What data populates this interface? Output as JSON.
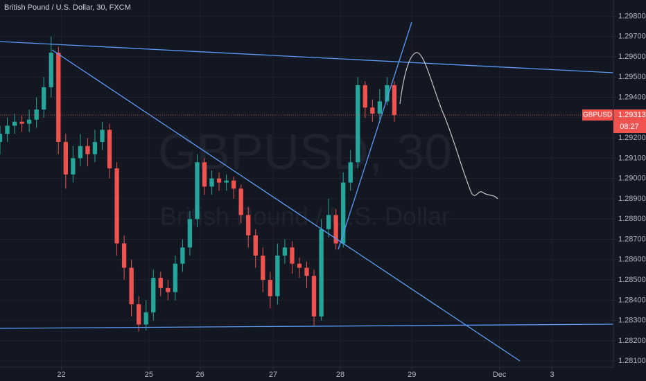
{
  "chart_data": {
    "type": "candlestick",
    "title": "British Pound / U.S. Dollar, 30, FXCM",
    "watermark": "GBPUSD, 30",
    "watermark_subtitle": "British Pound / U.S. Dollar",
    "symbol": "GBPUSD",
    "last_price": {
      "value": 1.29313,
      "label": "1.29313"
    },
    "countdown": "08:27",
    "up_color": "#26a69a",
    "down_color": "#ef5350",
    "grid": true,
    "xlim": [
      0,
      420
    ],
    "xticks": [
      {
        "value": 42,
        "label": "22"
      },
      {
        "value": 102,
        "label": "25"
      },
      {
        "value": 137,
        "label": "26"
      },
      {
        "value": 187,
        "label": "27"
      },
      {
        "value": 233,
        "label": "28"
      },
      {
        "value": 282,
        "label": "29"
      },
      {
        "value": 342,
        "label": "Dec"
      },
      {
        "value": 378,
        "label": "3"
      }
    ],
    "ylim": [
      1.2807,
      1.2988
    ],
    "yticks": [
      {
        "value": 1.281,
        "label": "1.28100"
      },
      {
        "value": 1.282,
        "label": "1.28200"
      },
      {
        "value": 1.283,
        "label": "1.28300"
      },
      {
        "value": 1.284,
        "label": "1.28400"
      },
      {
        "value": 1.285,
        "label": "1.28500"
      },
      {
        "value": 1.286,
        "label": "1.28600"
      },
      {
        "value": 1.287,
        "label": "1.28700"
      },
      {
        "value": 1.288,
        "label": "1.28800"
      },
      {
        "value": 1.289,
        "label": "1.28900"
      },
      {
        "value": 1.29,
        "label": "1.29000"
      },
      {
        "value": 1.291,
        "label": "1.29100"
      },
      {
        "value": 1.292,
        "label": "1.29200"
      },
      {
        "value": 1.293,
        "label": "1.29300"
      },
      {
        "value": 1.294,
        "label": "1.29400"
      },
      {
        "value": 1.295,
        "label": "1.29500"
      },
      {
        "value": 1.296,
        "label": "1.29600"
      },
      {
        "value": 1.297,
        "label": "1.29700"
      },
      {
        "value": 1.298,
        "label": "1.29800"
      }
    ],
    "x": [
      0,
      5,
      10,
      15,
      20,
      25,
      30,
      35,
      40,
      45,
      50,
      55,
      60,
      65,
      70,
      75,
      80,
      85,
      90,
      95,
      100,
      105,
      110,
      115,
      120,
      125,
      130,
      135,
      140,
      145,
      150,
      155,
      160,
      165,
      170,
      175,
      180,
      185,
      190,
      195,
      200,
      205,
      210,
      215,
      220,
      225,
      230,
      235,
      240,
      245,
      250,
      255,
      260,
      265,
      270
    ],
    "open": [
      1.2918,
      1.2922,
      1.2926,
      1.2928,
      1.2927,
      1.2929,
      1.2934,
      1.2945,
      1.2962,
      1.2918,
      1.2902,
      1.291,
      1.2916,
      1.2912,
      1.2918,
      1.2924,
      1.2905,
      1.2868,
      1.2856,
      1.2838,
      1.2828,
      1.2834,
      1.2851,
      1.2846,
      1.2844,
      1.2858,
      1.2866,
      1.288,
      1.2908,
      1.2896,
      1.29,
      1.2898,
      1.2899,
      1.2895,
      1.2882,
      1.2872,
      1.2862,
      1.285,
      1.2842,
      1.2862,
      1.2866,
      1.2858,
      1.2856,
      1.2852,
      1.2832,
      1.2875,
      1.2882,
      1.2868,
      1.2898,
      1.2908,
      1.2946,
      1.2935,
      1.2932,
      1.2938,
      1.2946
    ],
    "high": [
      1.2926,
      1.293,
      1.2932,
      1.2931,
      1.2934,
      1.294,
      1.295,
      1.297,
      1.2965,
      1.2922,
      1.2916,
      1.2922,
      1.292,
      1.2924,
      1.2928,
      1.2927,
      1.2908,
      1.2872,
      1.286,
      1.2842,
      1.284,
      1.2855,
      1.2854,
      1.285,
      1.2862,
      1.287,
      1.2884,
      1.2912,
      1.291,
      1.2904,
      1.2903,
      1.2902,
      1.2901,
      1.2897,
      1.2886,
      1.2875,
      1.2866,
      1.2854,
      1.2868,
      1.287,
      1.2869,
      1.2861,
      1.2859,
      1.2855,
      1.288,
      1.289,
      1.2885,
      1.2903,
      1.2914,
      1.295,
      1.2948,
      1.2939,
      1.2944,
      1.295,
      1.2948
    ],
    "low": [
      1.2912,
      1.2918,
      1.2922,
      1.2923,
      1.2923,
      1.2925,
      1.293,
      1.294,
      1.2912,
      1.2895,
      1.2898,
      1.2906,
      1.2906,
      1.2908,
      1.2914,
      1.29,
      1.2862,
      1.285,
      1.2832,
      1.28245,
      1.2825,
      1.283,
      1.2842,
      1.284,
      1.284,
      1.2854,
      1.2862,
      1.2876,
      1.2892,
      1.2892,
      1.2894,
      1.2894,
      1.289,
      1.2878,
      1.2866,
      1.2856,
      1.2844,
      1.2836,
      1.2838,
      1.2858,
      1.2853,
      1.2851,
      1.2846,
      1.28275,
      1.283,
      1.2871,
      1.2865,
      1.2866,
      1.2894,
      1.2905,
      1.293,
      1.2928,
      1.2929,
      1.2936,
      1.2928
    ],
    "close": [
      1.2922,
      1.2926,
      1.2928,
      1.2927,
      1.2929,
      1.2934,
      1.2945,
      1.2962,
      1.2918,
      1.2902,
      1.291,
      1.2916,
      1.2912,
      1.2918,
      1.2924,
      1.2905,
      1.2868,
      1.2856,
      1.2838,
      1.2828,
      1.2834,
      1.2851,
      1.2846,
      1.2844,
      1.2858,
      1.2866,
      1.288,
      1.2908,
      1.2896,
      1.29,
      1.2898,
      1.2899,
      1.2895,
      1.2882,
      1.2872,
      1.2862,
      1.285,
      1.2842,
      1.2862,
      1.2866,
      1.2858,
      1.2856,
      1.2852,
      1.2832,
      1.2875,
      1.2882,
      1.2868,
      1.2898,
      1.2908,
      1.2946,
      1.2935,
      1.2932,
      1.2938,
      1.2946,
      1.29313
    ]
  }
}
